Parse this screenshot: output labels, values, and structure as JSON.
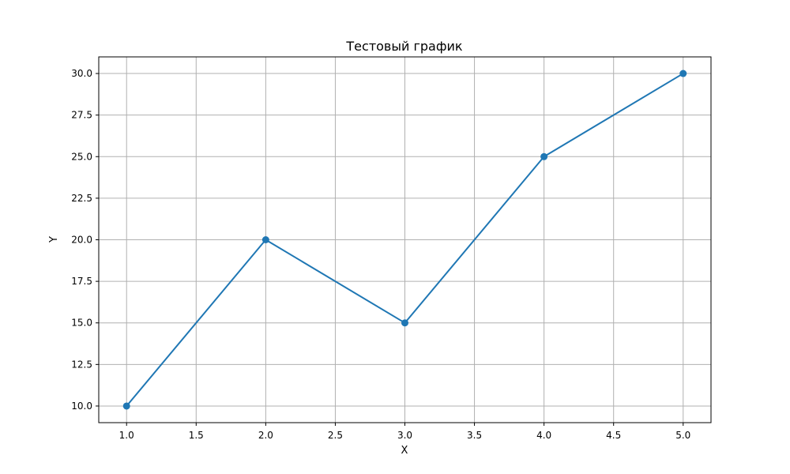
{
  "chart_data": {
    "type": "line",
    "title": "Тестовый график",
    "xlabel": "X",
    "ylabel": "Y",
    "x": [
      1,
      2,
      3,
      4,
      5
    ],
    "series": [
      {
        "values": [
          10,
          20,
          15,
          25,
          30
        ],
        "color": "#1f77b4",
        "marker": "circle"
      }
    ],
    "xlim": [
      0.8,
      5.2
    ],
    "ylim": [
      9.0,
      31.0
    ],
    "xticks": [
      "1.0",
      "1.5",
      "2.0",
      "2.5",
      "3.0",
      "3.5",
      "4.0",
      "4.5",
      "5.0"
    ],
    "yticks": [
      "10.0",
      "12.5",
      "15.0",
      "17.5",
      "20.0",
      "22.5",
      "25.0",
      "27.5",
      "30.0"
    ],
    "grid": true
  }
}
